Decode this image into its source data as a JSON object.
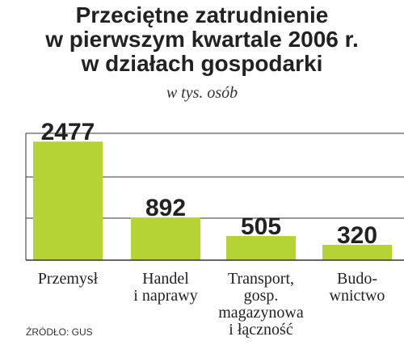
{
  "chart_data": {
    "type": "bar",
    "title": [
      "Przeciętne zatrudnienie",
      "w pierwszym kwartale 2006 r.",
      "w działach gospodarki"
    ],
    "subtitle": "w tys. osób",
    "categories": [
      [
        "Przemysł"
      ],
      [
        "Handel",
        "i naprawy"
      ],
      [
        "Transport,",
        "gosp.",
        "magazynowa",
        "i łączność"
      ],
      [
        "Budo-",
        "wnictwo"
      ]
    ],
    "values": [
      2477,
      892,
      505,
      320
    ],
    "data_labels": [
      "2477",
      "892",
      "505",
      "320"
    ],
    "ylim": [
      0,
      2650
    ],
    "grid": true,
    "bar_color": "#b5d334",
    "source": "ŹRÓDŁO: GUS"
  }
}
